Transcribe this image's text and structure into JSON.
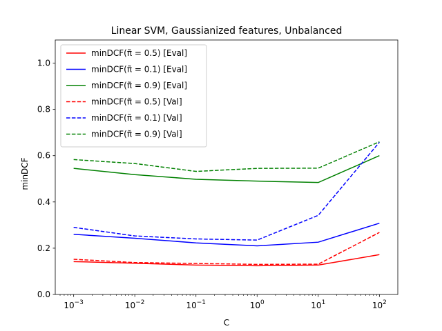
{
  "chart_data": {
    "type": "line",
    "title": "Linear SVM, Gaussianized features, Unbalanced",
    "xlabel": "C",
    "ylabel": "minDCF",
    "xscale": "log",
    "x": [
      0.001,
      0.01,
      0.1,
      1,
      10,
      100
    ],
    "x_tick_labels": [
      {
        "base": "10",
        "exp": "−3"
      },
      {
        "base": "10",
        "exp": "−2"
      },
      {
        "base": "10",
        "exp": "−1"
      },
      {
        "base": "10",
        "exp": "0"
      },
      {
        "base": "10",
        "exp": "1"
      },
      {
        "base": "10",
        "exp": "2"
      }
    ],
    "xlim": [
      0.0005,
      200
    ],
    "ylim": [
      0.0,
      1.1
    ],
    "y_ticks": [
      0.0,
      0.2,
      0.4,
      0.6,
      0.8,
      1.0
    ],
    "y_tick_labels": [
      "0.0",
      "0.2",
      "0.4",
      "0.6",
      "0.8",
      "1.0"
    ],
    "grid": false,
    "legend_position": "top-left",
    "series": [
      {
        "name": "minDCF(π̃ = 0.5) [Eval]",
        "color": "#ff0000",
        "dash": "solid",
        "values": [
          0.142,
          0.135,
          0.127,
          0.124,
          0.127,
          0.172
        ]
      },
      {
        "name": "minDCF(π̃ = 0.1) [Eval]",
        "color": "#0000ff",
        "dash": "solid",
        "values": [
          0.26,
          0.243,
          0.223,
          0.21,
          0.226,
          0.308
        ]
      },
      {
        "name": "minDCF(π̃ = 0.9) [Eval]",
        "color": "#008000",
        "dash": "solid",
        "values": [
          0.545,
          0.518,
          0.498,
          0.49,
          0.484,
          0.6
        ]
      },
      {
        "name": "minDCF(π̃ = 0.5) [Val]",
        "color": "#ff0000",
        "dash": "dashed",
        "values": [
          0.152,
          0.138,
          0.134,
          0.13,
          0.131,
          0.268
        ]
      },
      {
        "name": "minDCF(π̃ = 0.1) [Val]",
        "color": "#0000ff",
        "dash": "dashed",
        "values": [
          0.29,
          0.253,
          0.24,
          0.235,
          0.342,
          0.658
        ]
      },
      {
        "name": "minDCF(π̃ = 0.9) [Val]",
        "color": "#008000",
        "dash": "dashed",
        "values": [
          0.583,
          0.566,
          0.532,
          0.545,
          0.546,
          0.66
        ]
      }
    ]
  }
}
